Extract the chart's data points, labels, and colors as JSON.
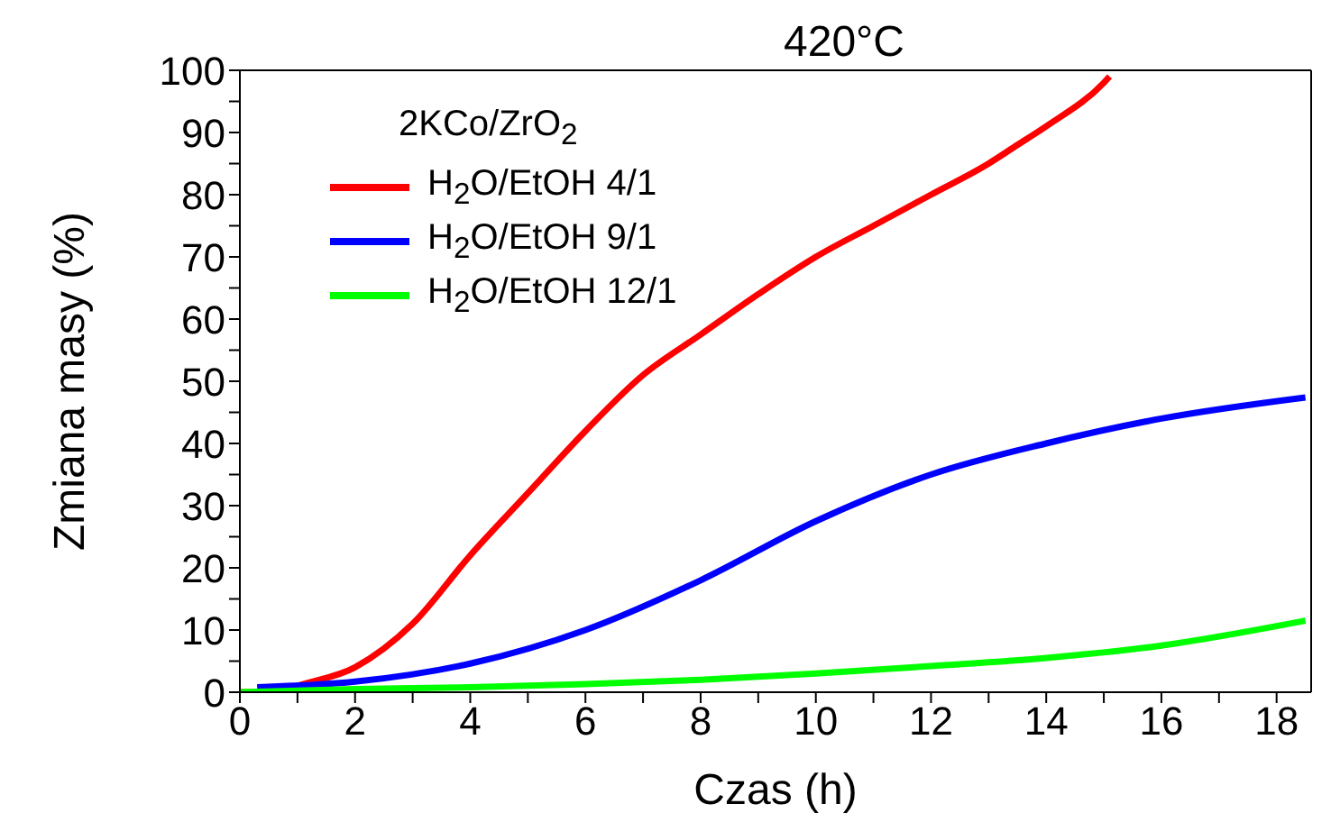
{
  "chart_data": {
    "type": "line",
    "title": "420°C",
    "xlabel": "Czas (h)",
    "ylabel": "Zmiana masy (%)",
    "legend_title": "2KCo/ZrO$_{2}$",
    "legend": "top left",
    "grid": false,
    "marker": "none",
    "line_style": "solid",
    "xlim": [
      0,
      18.6
    ],
    "ylim": [
      0,
      100
    ],
    "xticks": [
      0,
      {
        "value": 1,
        "label": null
      },
      2,
      {
        "value": 3,
        "label": null
      },
      4,
      {
        "value": 5,
        "label": null
      },
      6,
      {
        "value": 7,
        "label": null
      },
      8,
      {
        "value": 9,
        "label": null
      },
      10,
      {
        "value": 11,
        "label": null
      },
      12,
      {
        "value": 13,
        "label": null
      },
      14,
      {
        "value": 15,
        "label": null
      },
      16,
      {
        "value": 17,
        "label": null
      },
      18
    ],
    "yticks": [
      0,
      {
        "value": 5,
        "label": null
      },
      10,
      {
        "value": 15,
        "label": null
      },
      20,
      {
        "value": 25,
        "label": null
      },
      30,
      {
        "value": 35,
        "label": null
      },
      40,
      {
        "value": 45,
        "label": null
      },
      50,
      {
        "value": 55,
        "label": null
      },
      60,
      {
        "value": 65,
        "label": null
      },
      70,
      {
        "value": 75,
        "label": null
      },
      80,
      {
        "value": 85,
        "label": null
      },
      90,
      {
        "value": 95,
        "label": null
      },
      100
    ],
    "series": [
      {
        "name": "H$_{2}$O/EtOH 4/1",
        "color": "#ff0000",
        "x": [
          0,
          0.7,
          1,
          2,
          3,
          4,
          5,
          6,
          7,
          8,
          9,
          10,
          11,
          12,
          13,
          13.5,
          14,
          15,
          15.1
        ],
        "values": [
          0,
          0,
          1,
          4,
          11,
          22,
          32,
          42,
          51,
          57.5,
          64,
          70,
          75,
          80,
          85,
          88,
          91,
          98,
          99
        ]
      },
      {
        "name": "H$_{2}$O/EtOH 9/1",
        "color": "#0000ff",
        "x": [
          0.3,
          2,
          4,
          6,
          8,
          10,
          12,
          14,
          16,
          18.5
        ],
        "values": [
          0.8,
          1.7,
          4.6,
          10,
          18,
          27.5,
          35,
          40,
          44,
          47.4
        ]
      },
      {
        "name": "H$_{2}$O/EtOH 12/1",
        "color": "#00ff00",
        "x": [
          0,
          2,
          4,
          6,
          8,
          10,
          12,
          14,
          16,
          18.5
        ],
        "values": [
          0,
          0.5,
          0.8,
          1.3,
          2,
          3,
          4.2,
          5.5,
          7.5,
          11.5
        ]
      }
    ]
  }
}
